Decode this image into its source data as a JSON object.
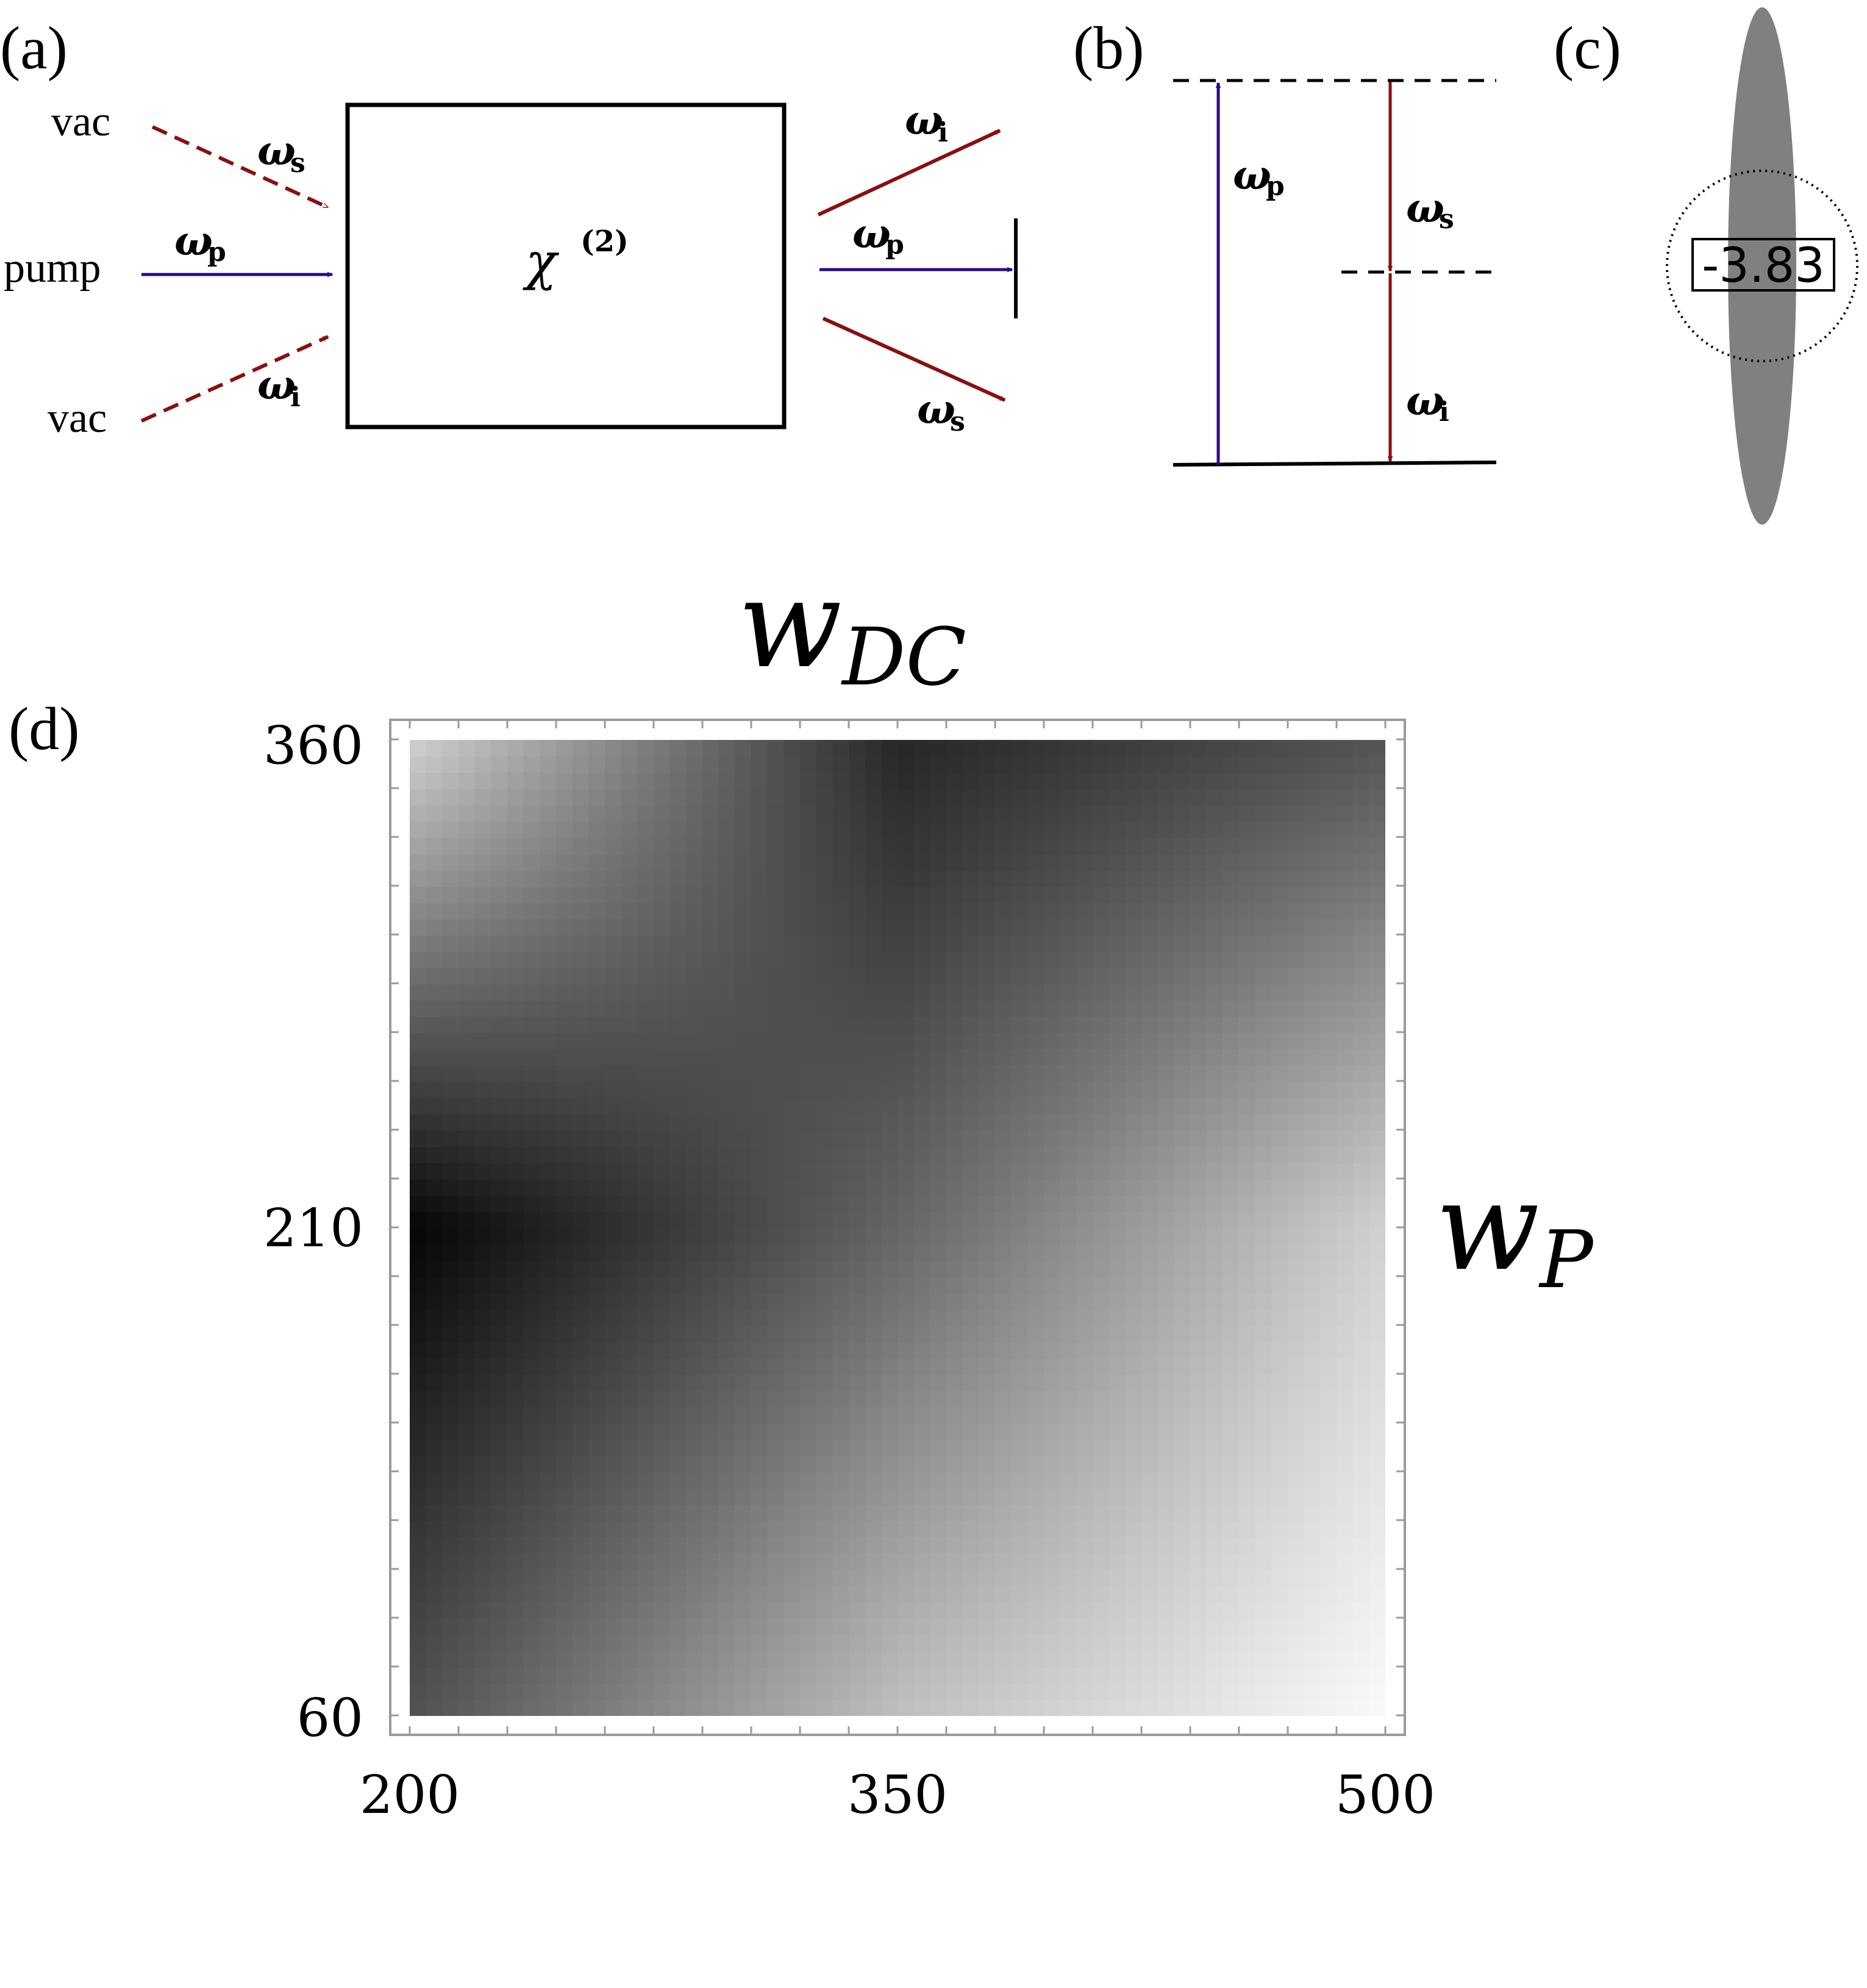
{
  "panels": {
    "a": {
      "label": "(a)",
      "inputs": {
        "top": "vac",
        "middle": "pump",
        "bottom": "vac"
      },
      "box_label": "χ",
      "box_superscript": "(2)",
      "in_labels": {
        "signal": "ω",
        "signal_sub": "s",
        "pump": "ω",
        "pump_sub": "p",
        "idler": "ω",
        "idler_sub": "i"
      },
      "out_labels": {
        "idler": "ω",
        "idler_sub": "i",
        "pump": "ω",
        "pump_sub": "p",
        "signal": "ω",
        "signal_sub": "s"
      }
    },
    "b": {
      "label": "(b)",
      "pump": "ω",
      "pump_sub": "p",
      "signal": "ω",
      "signal_sub": "s",
      "idler": "ω",
      "idler_sub": "i"
    },
    "c": {
      "label": "(c)",
      "value": "-3.83"
    },
    "d": {
      "label": "(d)",
      "top_title": "w",
      "top_title_sub": "DC",
      "right_title": "w",
      "right_title_sub": "P",
      "x_ticks": [
        "200",
        "350",
        "500"
      ],
      "y_ticks": [
        "360",
        "210",
        "60"
      ]
    }
  },
  "colors": {
    "pump": "#2a0a80",
    "signal_idler": "#8b0f0f",
    "ellipse": "#808080",
    "line": "#000000"
  },
  "chart_data": {
    "type": "heatmap",
    "colormap": "grayscale",
    "x": [
      200,
      350,
      500
    ],
    "y": [
      60,
      210,
      360
    ],
    "xlim": [
      200,
      500
    ],
    "ylim": [
      60,
      360
    ],
    "xlabel": "",
    "ylabel": "",
    "description_of_values": "relative intensity (0 = white, 1 = black), estimated",
    "z": [
      [
        0.68,
        0.25,
        0.02
      ],
      [
        0.98,
        0.6,
        0.18
      ],
      [
        0.18,
        0.85,
        0.67
      ]
    ]
  }
}
